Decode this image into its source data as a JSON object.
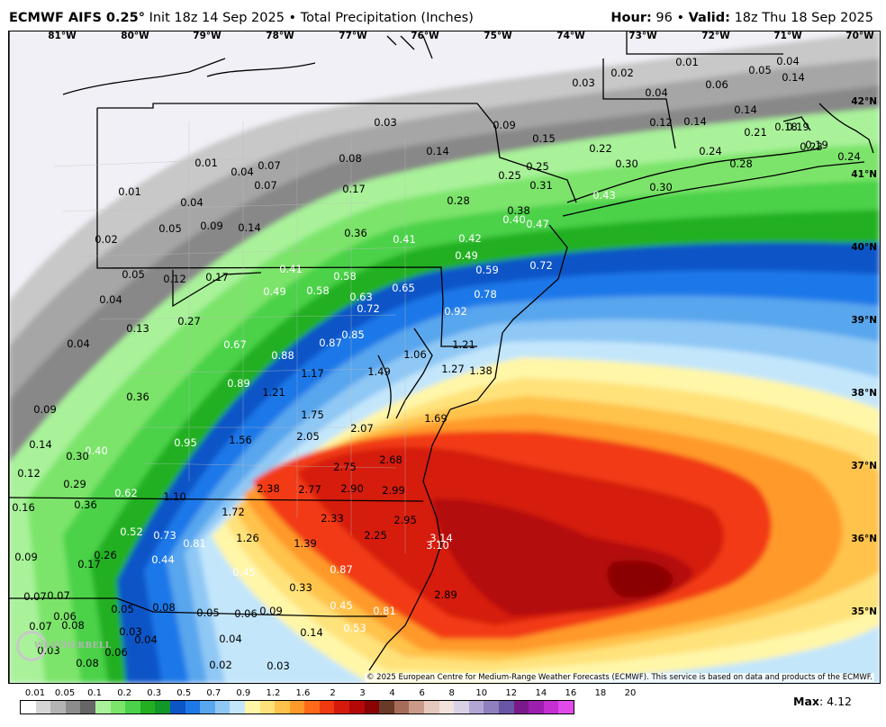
{
  "header": {
    "model": "ECMWF AIFS 0.25",
    "degree": "°",
    "init": " Init 18z 14 Sep 2025",
    "separator": " • ",
    "product": "Total Precipitation (Inches)",
    "hour_label": "Hour:",
    "hour": " 96",
    "valid_label": "Valid:",
    "valid": " 18z Thu 18 Sep 2025"
  },
  "map": {
    "longitude_labels": [
      "81°W",
      "80°W",
      "79°W",
      "78°W",
      "77°W",
      "76°W",
      "75°W",
      "74°W",
      "73°W",
      "72°W",
      "71°W",
      "70°W"
    ],
    "latitude_labels": [
      "42°N",
      "41°N",
      "40°N",
      "39°N",
      "38°N",
      "37°N",
      "36°N",
      "35°N"
    ],
    "point_values": [
      {
        "t": "0.02"
      },
      {
        "t": "0.01"
      },
      {
        "t": "0.05"
      },
      {
        "t": "0.04"
      },
      {
        "t": "0.03"
      },
      {
        "t": "0.04"
      },
      {
        "t": "0.06"
      },
      {
        "t": "0.14"
      },
      {
        "t": "0.03"
      },
      {
        "t": "0.09"
      },
      {
        "t": "0.15"
      },
      {
        "t": "0.22"
      },
      {
        "t": "0.12"
      },
      {
        "t": "0.14"
      },
      {
        "t": "0.14"
      },
      {
        "t": "0.18"
      },
      {
        "t": "0.19"
      },
      {
        "t": "0.19"
      },
      {
        "t": "0.21"
      },
      {
        "t": "0.23"
      },
      {
        "t": "0.24"
      },
      {
        "t": "0.01"
      },
      {
        "t": "0.04"
      },
      {
        "t": "0.07"
      },
      {
        "t": "0.08"
      },
      {
        "t": "0.14"
      },
      {
        "t": "0.01"
      },
      {
        "t": "0.04"
      },
      {
        "t": "0.07"
      },
      {
        "t": "0.17"
      },
      {
        "t": "0.25"
      },
      {
        "t": "0.25"
      },
      {
        "t": "0.31"
      },
      {
        "t": "0.30"
      },
      {
        "t": "0.24"
      },
      {
        "t": "0.28"
      },
      {
        "t": "0.43"
      },
      {
        "t": "0.30"
      },
      {
        "t": "0.05"
      },
      {
        "t": "0.09"
      },
      {
        "t": "0.14"
      },
      {
        "t": "0.28"
      },
      {
        "t": "0.38"
      },
      {
        "t": "0.40"
      },
      {
        "t": "0.47"
      },
      {
        "t": "0.02"
      },
      {
        "t": "0.36"
      },
      {
        "t": "0.41"
      },
      {
        "t": "0.42"
      },
      {
        "t": "0.05"
      },
      {
        "t": "0.12"
      },
      {
        "t": "0.17"
      },
      {
        "t": "0.41"
      },
      {
        "t": "0.58"
      },
      {
        "t": "0.49"
      },
      {
        "t": "0.59"
      },
      {
        "t": "0.72"
      },
      {
        "t": "0.04"
      },
      {
        "t": "0.49"
      },
      {
        "t": "0.58"
      },
      {
        "t": "0.63"
      },
      {
        "t": "0.65"
      },
      {
        "t": "0.72"
      },
      {
        "t": "0.78"
      },
      {
        "t": "0.92"
      },
      {
        "t": "0.13"
      },
      {
        "t": "0.27"
      },
      {
        "t": "0.87"
      },
      {
        "t": "0.85"
      },
      {
        "t": "0.04"
      },
      {
        "t": "0.67"
      },
      {
        "t": "1.21"
      },
      {
        "t": "0.88"
      },
      {
        "t": "1.06"
      },
      {
        "t": "1.17"
      },
      {
        "t": "1.49"
      },
      {
        "t": "1.27"
      },
      {
        "t": "1.38"
      },
      {
        "t": "0.36"
      },
      {
        "t": "0.89"
      },
      {
        "t": "1.21"
      },
      {
        "t": "0.09"
      },
      {
        "t": "1.75"
      },
      {
        "t": "1.69"
      },
      {
        "t": "2.07"
      },
      {
        "t": "0.14"
      },
      {
        "t": "0.95"
      },
      {
        "t": "1.56"
      },
      {
        "t": "2.05"
      },
      {
        "t": "0.40"
      },
      {
        "t": "0.30"
      },
      {
        "t": "2.68"
      },
      {
        "t": "0.12"
      },
      {
        "t": "2.75"
      },
      {
        "t": "0.29"
      },
      {
        "t": "0.62"
      },
      {
        "t": "1.10"
      },
      {
        "t": "2.38"
      },
      {
        "t": "2.77"
      },
      {
        "t": "2.90"
      },
      {
        "t": "2.99"
      },
      {
        "t": "0.16"
      },
      {
        "t": "0.36"
      },
      {
        "t": "1.72"
      },
      {
        "t": "2.33"
      },
      {
        "t": "2.95"
      },
      {
        "t": "0.52"
      },
      {
        "t": "0.73"
      },
      {
        "t": "1.26"
      },
      {
        "t": "2.25"
      },
      {
        "t": "3.14"
      },
      {
        "t": "0.81"
      },
      {
        "t": "1.39"
      },
      {
        "t": "3.10"
      },
      {
        "t": "0.09"
      },
      {
        "t": "0.26"
      },
      {
        "t": "0.17"
      },
      {
        "t": "0.44"
      },
      {
        "t": "0.45"
      },
      {
        "t": "0.87"
      },
      {
        "t": "0.33"
      },
      {
        "t": "2.89"
      },
      {
        "t": "0.07"
      },
      {
        "t": "0.07"
      },
      {
        "t": "0.06"
      },
      {
        "t": "0.05"
      },
      {
        "t": "0.08"
      },
      {
        "t": "0.05"
      },
      {
        "t": "0.06"
      },
      {
        "t": "0.09"
      },
      {
        "t": "0.45"
      },
      {
        "t": "0.81"
      },
      {
        "t": "0.07"
      },
      {
        "t": "0.08"
      },
      {
        "t": "0.03"
      },
      {
        "t": "0.04"
      },
      {
        "t": "0.14"
      },
      {
        "t": "0.53"
      },
      {
        "t": "0.03"
      },
      {
        "t": "0.08"
      },
      {
        "t": "0.06"
      },
      {
        "t": "0.04"
      },
      {
        "t": "0.02"
      },
      {
        "t": "0.03"
      }
    ],
    "copyright": "© 2025 European Centre for Medium-Range Weather Forecasts (ECMWF). This service is based on data and products of the ECMWF.",
    "watermark": "WEATHERBELL"
  },
  "legend": {
    "ticks": [
      "0.01",
      "0.05",
      "0.1",
      "0.2",
      "0.3",
      "0.5",
      "0.7",
      "0.9",
      "1.2",
      "1.6",
      "2",
      "3",
      "4",
      "6",
      "8",
      "10",
      "12",
      "14",
      "16",
      "18",
      "20"
    ],
    "colors": [
      "#ffffff",
      "#d6d6d6",
      "#b4b4b4",
      "#8c8c8c",
      "#666666",
      "#a9f29a",
      "#7be46b",
      "#4bd24a",
      "#22b022",
      "#11962a",
      "#0b55c7",
      "#1e78e8",
      "#58a6ee",
      "#8fc8f5",
      "#c3e6fb",
      "#fff6a8",
      "#ffe27a",
      "#ffc24c",
      "#ff9a2a",
      "#ff6a1a",
      "#f23a12",
      "#d51a0d",
      "#b40808",
      "#8a0405",
      "#6a3a28",
      "#a76b5a",
      "#c99a8a",
      "#e6c8bc",
      "#f2e2dc",
      "#d9d1e6",
      "#b3a6d3",
      "#8f7fbe",
      "#6a56a4",
      "#7a1a8a",
      "#9d1fb0",
      "#c22fd2",
      "#e04ae8"
    ],
    "max_label": "Max",
    "max_value": ": 4.12"
  }
}
